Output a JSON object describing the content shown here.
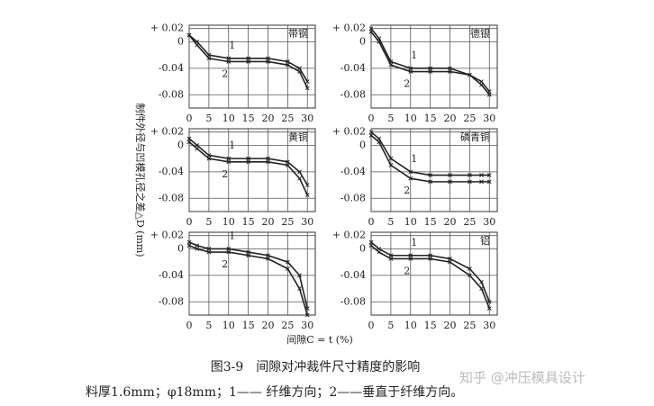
{
  "chart_data": [
    {
      "type": "line",
      "title": "带钢",
      "x": [
        0,
        2,
        5,
        10,
        15,
        20,
        25,
        28,
        30
      ],
      "series": [
        {
          "name": "1",
          "color": "#222",
          "values": [
            0.01,
            0,
            -0.02,
            -0.025,
            -0.025,
            -0.025,
            -0.03,
            -0.04,
            -0.06
          ]
        },
        {
          "name": "2",
          "color": "#222",
          "values": [
            0.01,
            -0.005,
            -0.025,
            -0.03,
            -0.03,
            -0.03,
            -0.035,
            -0.045,
            -0.07
          ]
        }
      ],
      "xlim": [
        0,
        32
      ],
      "ylim": [
        -0.1,
        0.025
      ],
      "xticks": [
        0,
        5,
        10,
        15,
        20,
        25,
        30
      ],
      "yticks": [
        {
          "value": 0.02,
          "label": "+ 0.02"
        },
        0,
        -0.04,
        -0.08
      ],
      "grid": true
    },
    {
      "type": "line",
      "title": "德银",
      "x": [
        0,
        2,
        5,
        10,
        15,
        20,
        25,
        28,
        30
      ],
      "series": [
        {
          "name": "1",
          "color": "#222",
          "values": [
            0.02,
            0.005,
            -0.03,
            -0.04,
            -0.04,
            -0.04,
            -0.05,
            -0.06,
            -0.075
          ]
        },
        {
          "name": "2",
          "color": "#222",
          "values": [
            0.015,
            0,
            -0.035,
            -0.045,
            -0.045,
            -0.045,
            -0.05,
            -0.065,
            -0.08
          ]
        }
      ],
      "xlim": [
        0,
        32
      ],
      "ylim": [
        -0.1,
        0.025
      ],
      "xticks": [
        0,
        5,
        10,
        15,
        20,
        25,
        30
      ],
      "yticks": [
        {
          "value": 0.02,
          "label": "+ 0.02"
        },
        0,
        -0.04,
        -0.08
      ],
      "grid": true
    },
    {
      "type": "line",
      "title": "黄铜",
      "x": [
        0,
        2,
        5,
        10,
        15,
        20,
        25,
        28,
        30
      ],
      "series": [
        {
          "name": "1",
          "color": "#222",
          "values": [
            0.01,
            0,
            -0.015,
            -0.02,
            -0.02,
            -0.02,
            -0.025,
            -0.04,
            -0.06
          ]
        },
        {
          "name": "2",
          "color": "#222",
          "values": [
            0.005,
            -0.005,
            -0.02,
            -0.025,
            -0.025,
            -0.025,
            -0.03,
            -0.05,
            -0.075
          ]
        }
      ],
      "xlim": [
        0,
        32
      ],
      "ylim": [
        -0.1,
        0.025
      ],
      "xticks": [
        0,
        5,
        10,
        15,
        20,
        25,
        30
      ],
      "yticks": [
        {
          "value": 0.02,
          "label": "+ 0.02"
        },
        0,
        -0.04,
        -0.08
      ],
      "grid": true
    },
    {
      "type": "line",
      "title": "磷青铜",
      "x": [
        0,
        2,
        5,
        10,
        15,
        20,
        25,
        28,
        30
      ],
      "series": [
        {
          "name": "1",
          "color": "#222",
          "values": [
            0.02,
            0.01,
            -0.02,
            -0.04,
            -0.045,
            -0.045,
            -0.045,
            -0.045,
            -0.045
          ]
        },
        {
          "name": "2",
          "color": "#222",
          "values": [
            0.015,
            0.005,
            -0.03,
            -0.05,
            -0.055,
            -0.055,
            -0.055,
            -0.055,
            -0.055
          ]
        }
      ],
      "xlim": [
        0,
        32
      ],
      "ylim": [
        -0.1,
        0.025
      ],
      "xticks": [
        0,
        5,
        10,
        15,
        20,
        25,
        30
      ],
      "yticks": [
        {
          "value": 0.02,
          "label": "+ 0.02"
        },
        0,
        -0.04,
        -0.08
      ],
      "grid": true
    },
    {
      "type": "line",
      "x": [
        0,
        2,
        5,
        10,
        15,
        20,
        25,
        28,
        30
      ],
      "series": [
        {
          "name": "1",
          "color": "#222",
          "values": [
            0.01,
            0.005,
            0,
            0,
            -0.005,
            -0.01,
            -0.02,
            -0.04,
            -0.09
          ]
        },
        {
          "name": "2",
          "color": "#222",
          "values": [
            0.005,
            0,
            -0.005,
            -0.005,
            -0.01,
            -0.015,
            -0.03,
            -0.06,
            -0.1
          ]
        }
      ],
      "xlim": [
        0,
        32
      ],
      "ylim": [
        -0.1,
        0.025
      ],
      "xticks": [
        0,
        5,
        10,
        15,
        20,
        25,
        30
      ],
      "yticks": [
        {
          "value": 0.02,
          "label": "+ 0.02"
        },
        0,
        -0.04,
        -0.08
      ],
      "grid": true
    },
    {
      "type": "line",
      "title": "铝",
      "x": [
        0,
        2,
        5,
        10,
        15,
        20,
        25,
        28,
        30
      ],
      "series": [
        {
          "name": "1",
          "color": "#222",
          "values": [
            0.01,
            0,
            -0.01,
            -0.01,
            -0.01,
            -0.015,
            -0.03,
            -0.05,
            -0.08
          ]
        },
        {
          "name": "2",
          "color": "#222",
          "values": [
            0.005,
            -0.005,
            -0.015,
            -0.015,
            -0.015,
            -0.02,
            -0.04,
            -0.06,
            -0.09
          ]
        }
      ],
      "xlim": [
        0,
        32
      ],
      "ylim": [
        -0.1,
        0.025
      ],
      "xticks": [
        0,
        5,
        10,
        15,
        20,
        25,
        30
      ],
      "yticks": [
        {
          "value": 0.02,
          "label": "+ 0.02"
        },
        0,
        -0.04,
        -0.08
      ],
      "grid": true
    }
  ],
  "y_axis_label": "制件外径与凹模孔径之差△D (mm)",
  "x_axis_label": "间隙C = t (%)",
  "caption": "图3-9　间隙对冲裁件尺寸精度的影响",
  "footnote": "料厚1.6mm；φ18mm；1—— 纤维方向；2——垂直于纤维方向。",
  "watermark": "知乎 @冲压模具设计"
}
